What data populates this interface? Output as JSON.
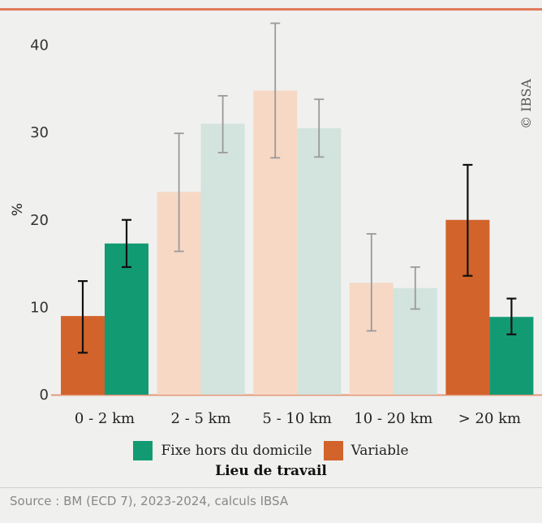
{
  "chart_data": {
    "type": "bar",
    "categories": [
      "0 - 2 km",
      "2 - 5 km",
      "5 - 10 km",
      "10 - 20 km",
      "> 20 km"
    ],
    "series": [
      {
        "name": "Variable",
        "color": "#d2632b",
        "faded_color": "#f6d8c5",
        "values": [
          9,
          23.2,
          34.8,
          12.8,
          20
        ],
        "error_low": [
          4.8,
          16.4,
          27.1,
          7.3,
          13.6
        ],
        "error_high": [
          13,
          29.9,
          42.5,
          18.4,
          26.3
        ]
      },
      {
        "name": "Fixe hors du domicile",
        "color": "#129b73",
        "faded_color": "#d3e3dd",
        "values": [
          17.3,
          31,
          30.5,
          12.2,
          8.9
        ],
        "error_low": [
          14.6,
          27.7,
          27.2,
          9.8,
          6.9
        ],
        "error_high": [
          20,
          34.2,
          33.8,
          14.6,
          11
        ]
      }
    ],
    "highlighted_categories": [
      0,
      4
    ],
    "ylabel": "%",
    "xlabel": "",
    "ylim": [
      0,
      42
    ],
    "yticks": [
      0,
      10,
      20,
      30,
      40
    ],
    "grid": false,
    "legend": {
      "placement": "bottom",
      "title": "Lieu de travail",
      "entries": [
        "Fixe hors du domicile",
        "Variable"
      ]
    },
    "copyright": "© IBSA"
  },
  "source": "Source : BM (ECD 7), 2023-2024, calculs IBSA",
  "colors": {
    "accent_line": "#e07a5a",
    "background": "#f0f0ef"
  }
}
